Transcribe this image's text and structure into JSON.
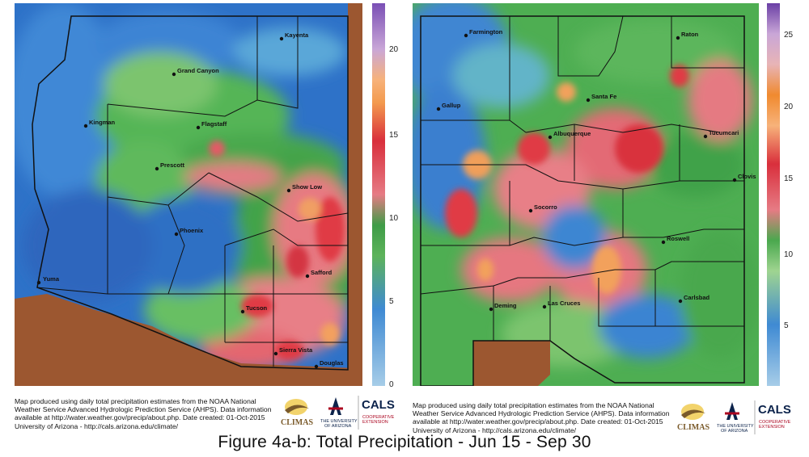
{
  "maps": [
    {
      "name": "arizona",
      "cities": [
        "Kayenta",
        "Grand Canyon",
        "Kingman",
        "Flagstaff",
        "Prescott",
        "Show Low",
        "Phoenix",
        "Safford",
        "Yuma",
        "Tucson",
        "Sierra Vista",
        "Douglas"
      ],
      "colorbar_ticks": [
        "0",
        "5",
        "10",
        "15",
        "20"
      ],
      "colorbar_range": [
        0,
        23
      ]
    },
    {
      "name": "new-mexico",
      "cities": [
        "Farmington",
        "Raton",
        "Gallup",
        "Santa Fe",
        "Albuquerque",
        "Tucumcari",
        "Clovis",
        "Socorro",
        "Roswell",
        "Deming",
        "Las Cruces",
        "Carlsbad"
      ],
      "colorbar_ticks": [
        "5",
        "10",
        "15",
        "20",
        "25"
      ],
      "colorbar_range": [
        0,
        27
      ]
    }
  ],
  "footer": {
    "line1": "Map produced using daily total precipitation estimates from the NOAA National",
    "line2": "Weather Service Advanced Hydrologic Prediction Service (AHPS). Data information",
    "line3": "available at http://water.weather.gov/precip/about.php. Date created: 01-Oct-2015",
    "line4": "University of Arizona - http://cals.arizona.edu/climate/"
  },
  "logos": {
    "climas": "CLIMAS",
    "ua_line1": "THE UNIVERSITY",
    "ua_line2": "OF ARIZONA",
    "cals": "CALS",
    "cals_sub1": "COOPERATIVE",
    "cals_sub2": "EXTENSION"
  },
  "caption": "Figure 4a-b: Total  Precipitation - Jun 15 - Sep 30"
}
